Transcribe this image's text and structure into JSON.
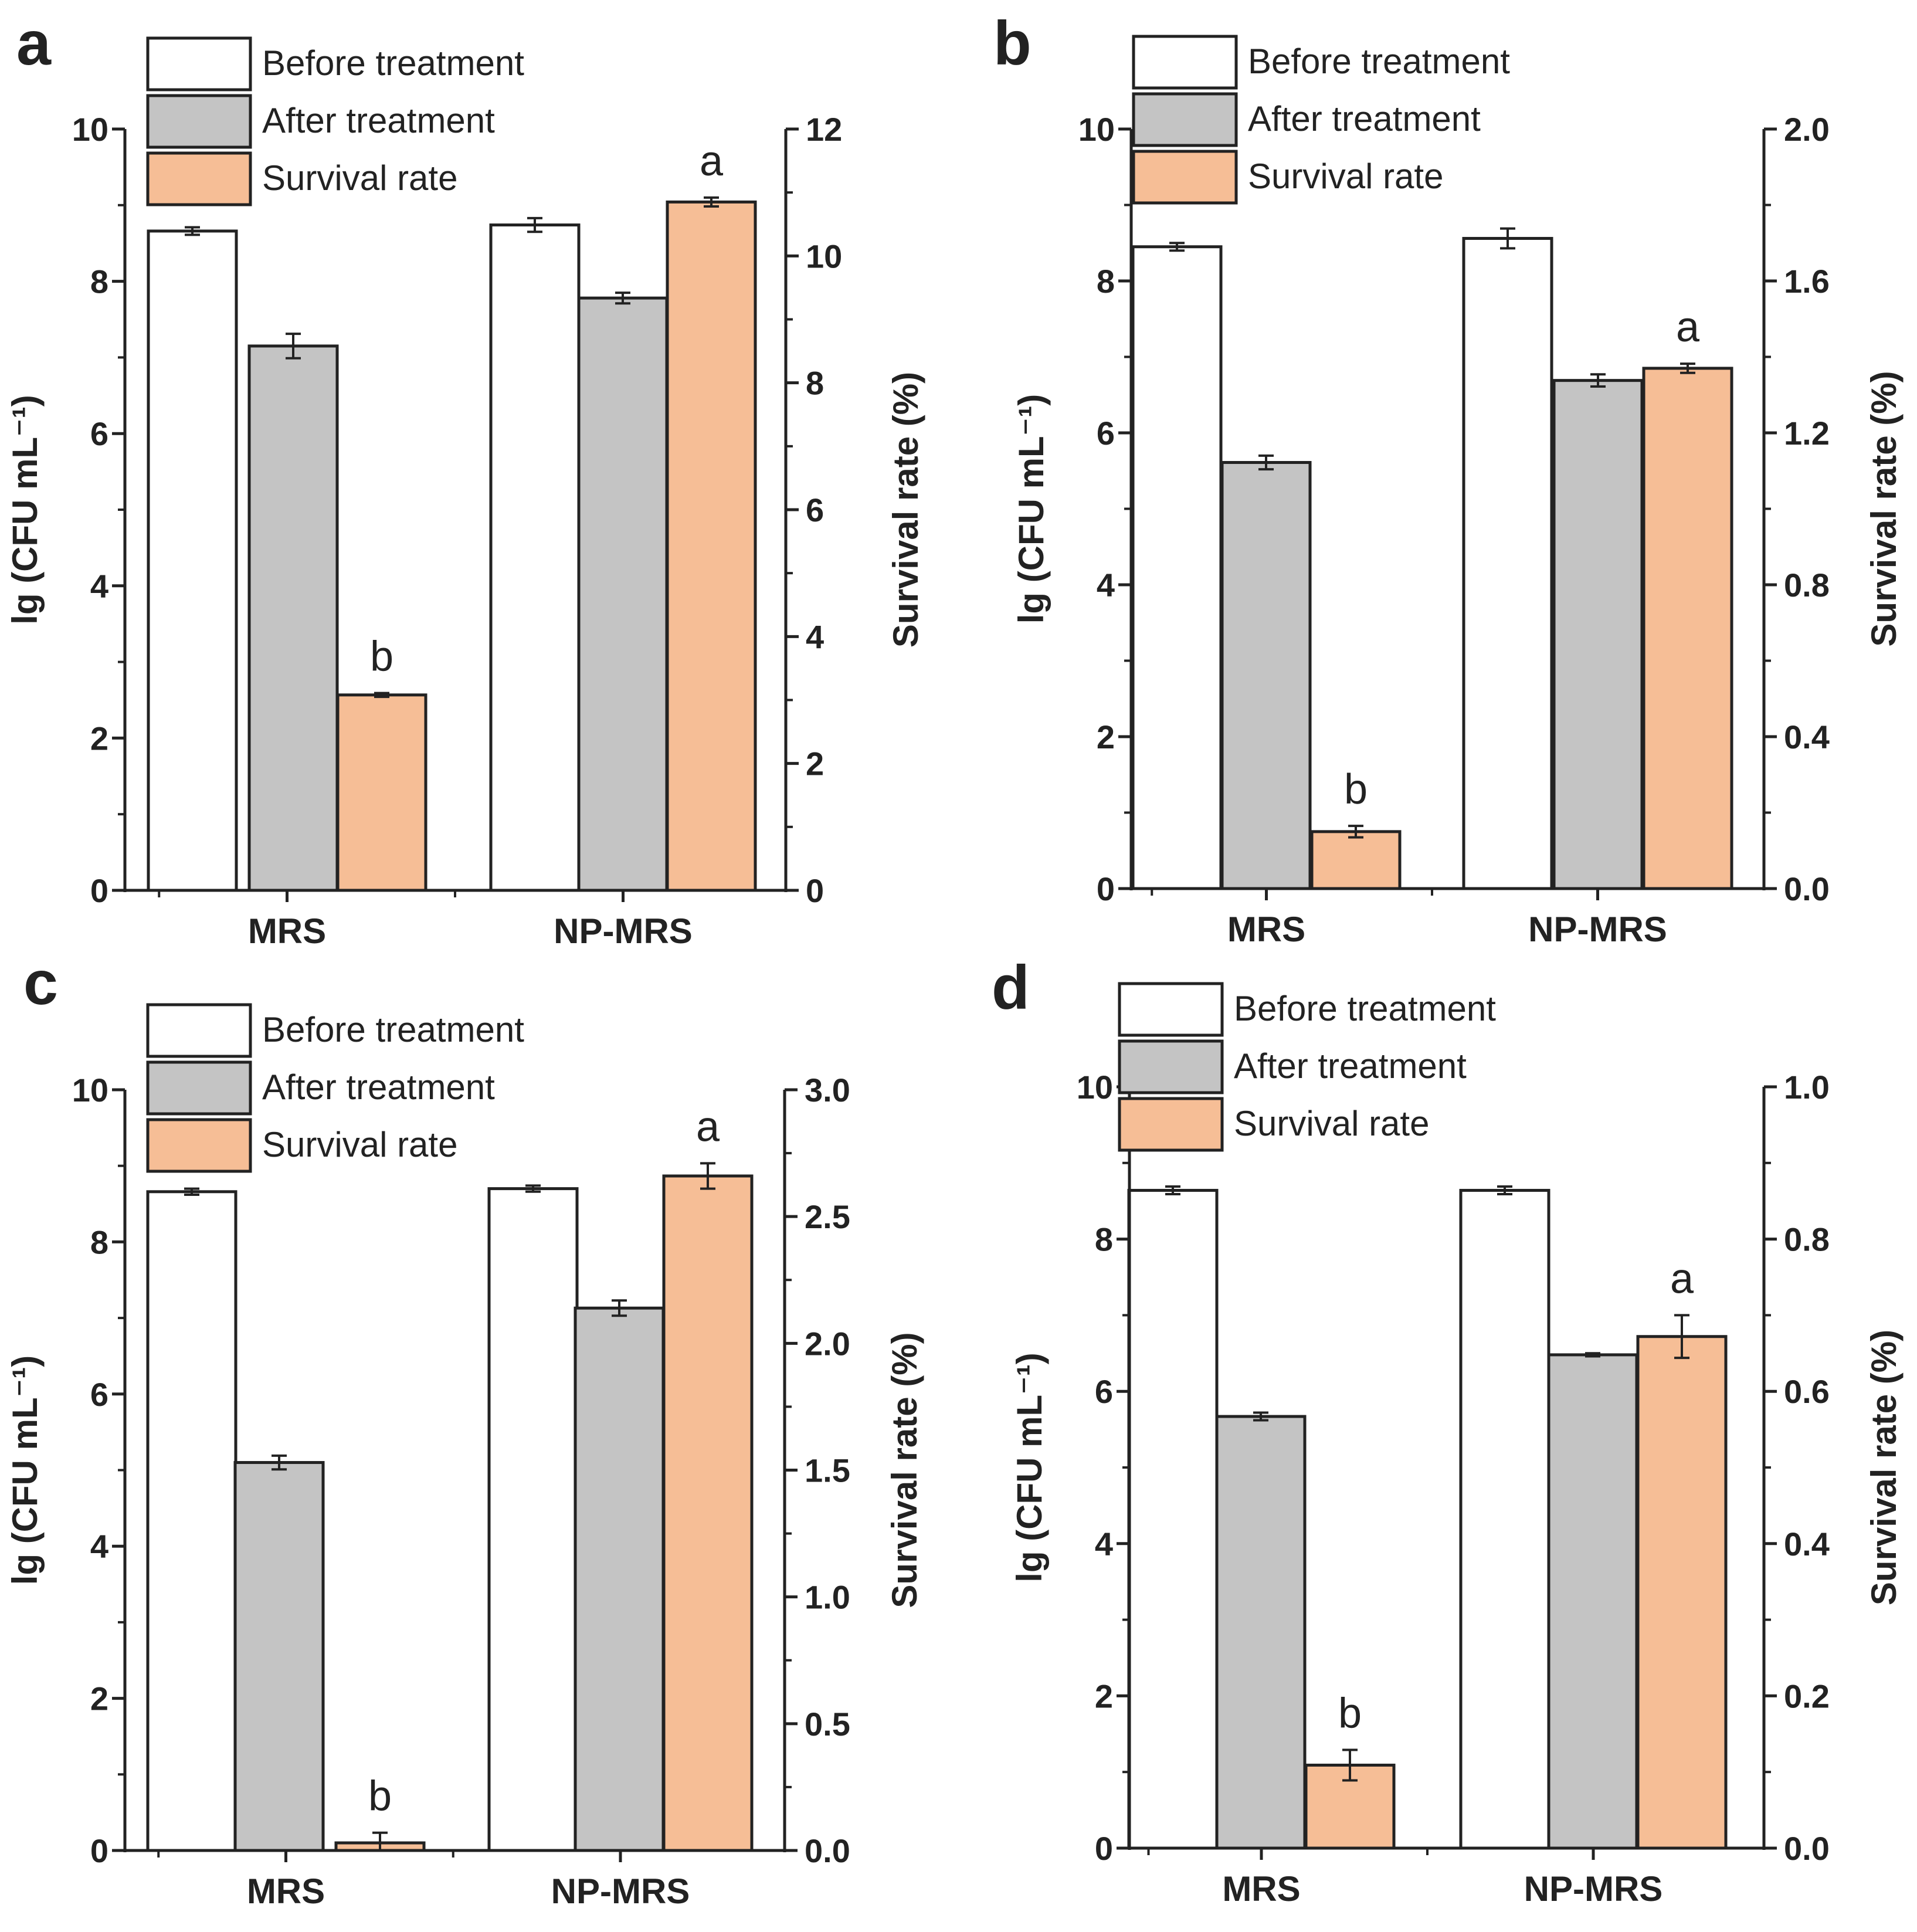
{
  "colors": {
    "before": "#ffffff",
    "after": "#c4c4c4",
    "survival": "#f6be96",
    "stroke": "#222222"
  },
  "legend": [
    "Before treatment",
    "After treatment",
    "Survival rate"
  ],
  "chart_data": [
    {
      "panel": "a",
      "type": "bar",
      "categories": [
        "MRS",
        "NP-MRS"
      ],
      "ylabel": "lg (CFU mL⁻¹)",
      "ylabel_right": "Survival rate (%)",
      "ylim": [
        0,
        10
      ],
      "yticks": [
        0,
        2,
        4,
        6,
        8,
        10
      ],
      "ylim_right": [
        0,
        12
      ],
      "yticks_right": [
        "0",
        "2",
        "4",
        "6",
        "8",
        "10",
        "12"
      ],
      "series": [
        {
          "name": "Before treatment",
          "axis": "left",
          "values": [
            8.66,
            8.74
          ],
          "errors": [
            0.05,
            0.09
          ]
        },
        {
          "name": "After treatment",
          "axis": "left",
          "values": [
            7.15,
            7.78
          ],
          "errors": [
            0.16,
            0.07
          ]
        },
        {
          "name": "Survival rate",
          "axis": "right",
          "values": [
            3.08,
            10.85
          ],
          "errors": [
            0.03,
            0.07
          ]
        }
      ],
      "significance": [
        "b",
        "a"
      ]
    },
    {
      "panel": "b",
      "type": "bar",
      "categories": [
        "MRS",
        "NP-MRS"
      ],
      "ylabel": "lg (CFU mL⁻¹)",
      "ylabel_right": "Survival rate (%)",
      "ylim": [
        0,
        10
      ],
      "yticks": [
        0,
        2,
        4,
        6,
        8,
        10
      ],
      "ylim_right": [
        0,
        2
      ],
      "yticks_right": [
        "0.0",
        "0.4",
        "0.8",
        "1.2",
        "1.6",
        "2.0"
      ],
      "series": [
        {
          "name": "Before treatment",
          "axis": "left",
          "values": [
            8.45,
            8.56
          ],
          "errors": [
            0.05,
            0.13
          ]
        },
        {
          "name": "After treatment",
          "axis": "left",
          "values": [
            5.61,
            6.69
          ],
          "errors": [
            0.09,
            0.08
          ]
        },
        {
          "name": "Survival rate",
          "axis": "right",
          "values": [
            0.15,
            1.37
          ],
          "errors": [
            0.015,
            0.012
          ]
        }
      ],
      "significance": [
        "b",
        "a"
      ]
    },
    {
      "panel": "c",
      "type": "bar",
      "categories": [
        "MRS",
        "NP-MRS"
      ],
      "ylabel": "lg (CFU mL⁻¹)",
      "ylabel_right": "Survival rate (%)",
      "ylim": [
        0,
        10
      ],
      "yticks": [
        0,
        2,
        4,
        6,
        8,
        10
      ],
      "ylim_right": [
        0,
        3
      ],
      "yticks_right": [
        "0.0",
        "0.5",
        "1.0",
        "1.5",
        "2.0",
        "2.5",
        "3.0"
      ],
      "series": [
        {
          "name": "Before treatment",
          "axis": "left",
          "values": [
            8.66,
            8.7
          ],
          "errors": [
            0.04,
            0.04
          ]
        },
        {
          "name": "After treatment",
          "axis": "left",
          "values": [
            5.1,
            7.13
          ],
          "errors": [
            0.09,
            0.1
          ]
        },
        {
          "name": "Survival rate",
          "axis": "right",
          "values": [
            0.03,
            2.66
          ],
          "errors": [
            0.04,
            0.05
          ]
        }
      ],
      "significance": [
        "b",
        "a"
      ]
    },
    {
      "panel": "d",
      "type": "bar",
      "categories": [
        "MRS",
        "NP-MRS"
      ],
      "ylabel": "lg (CFU mL⁻¹)",
      "ylabel_right": "Survival rate (%)",
      "ylim": [
        0,
        10
      ],
      "yticks": [
        0,
        2,
        4,
        6,
        8,
        10
      ],
      "ylim_right": [
        0,
        1
      ],
      "yticks_right": [
        "0.0",
        "0.2",
        "0.4",
        "0.6",
        "0.8",
        "1.0"
      ],
      "series": [
        {
          "name": "Before treatment",
          "axis": "left",
          "values": [
            8.64,
            8.64
          ],
          "errors": [
            0.05,
            0.05
          ]
        },
        {
          "name": "After treatment",
          "axis": "left",
          "values": [
            5.67,
            6.48
          ],
          "errors": [
            0.05,
            0.02
          ]
        },
        {
          "name": "Survival rate",
          "axis": "right",
          "values": [
            0.109,
            0.672
          ],
          "errors": [
            0.02,
            0.028
          ]
        }
      ],
      "significance": [
        "b",
        "a"
      ]
    }
  ]
}
